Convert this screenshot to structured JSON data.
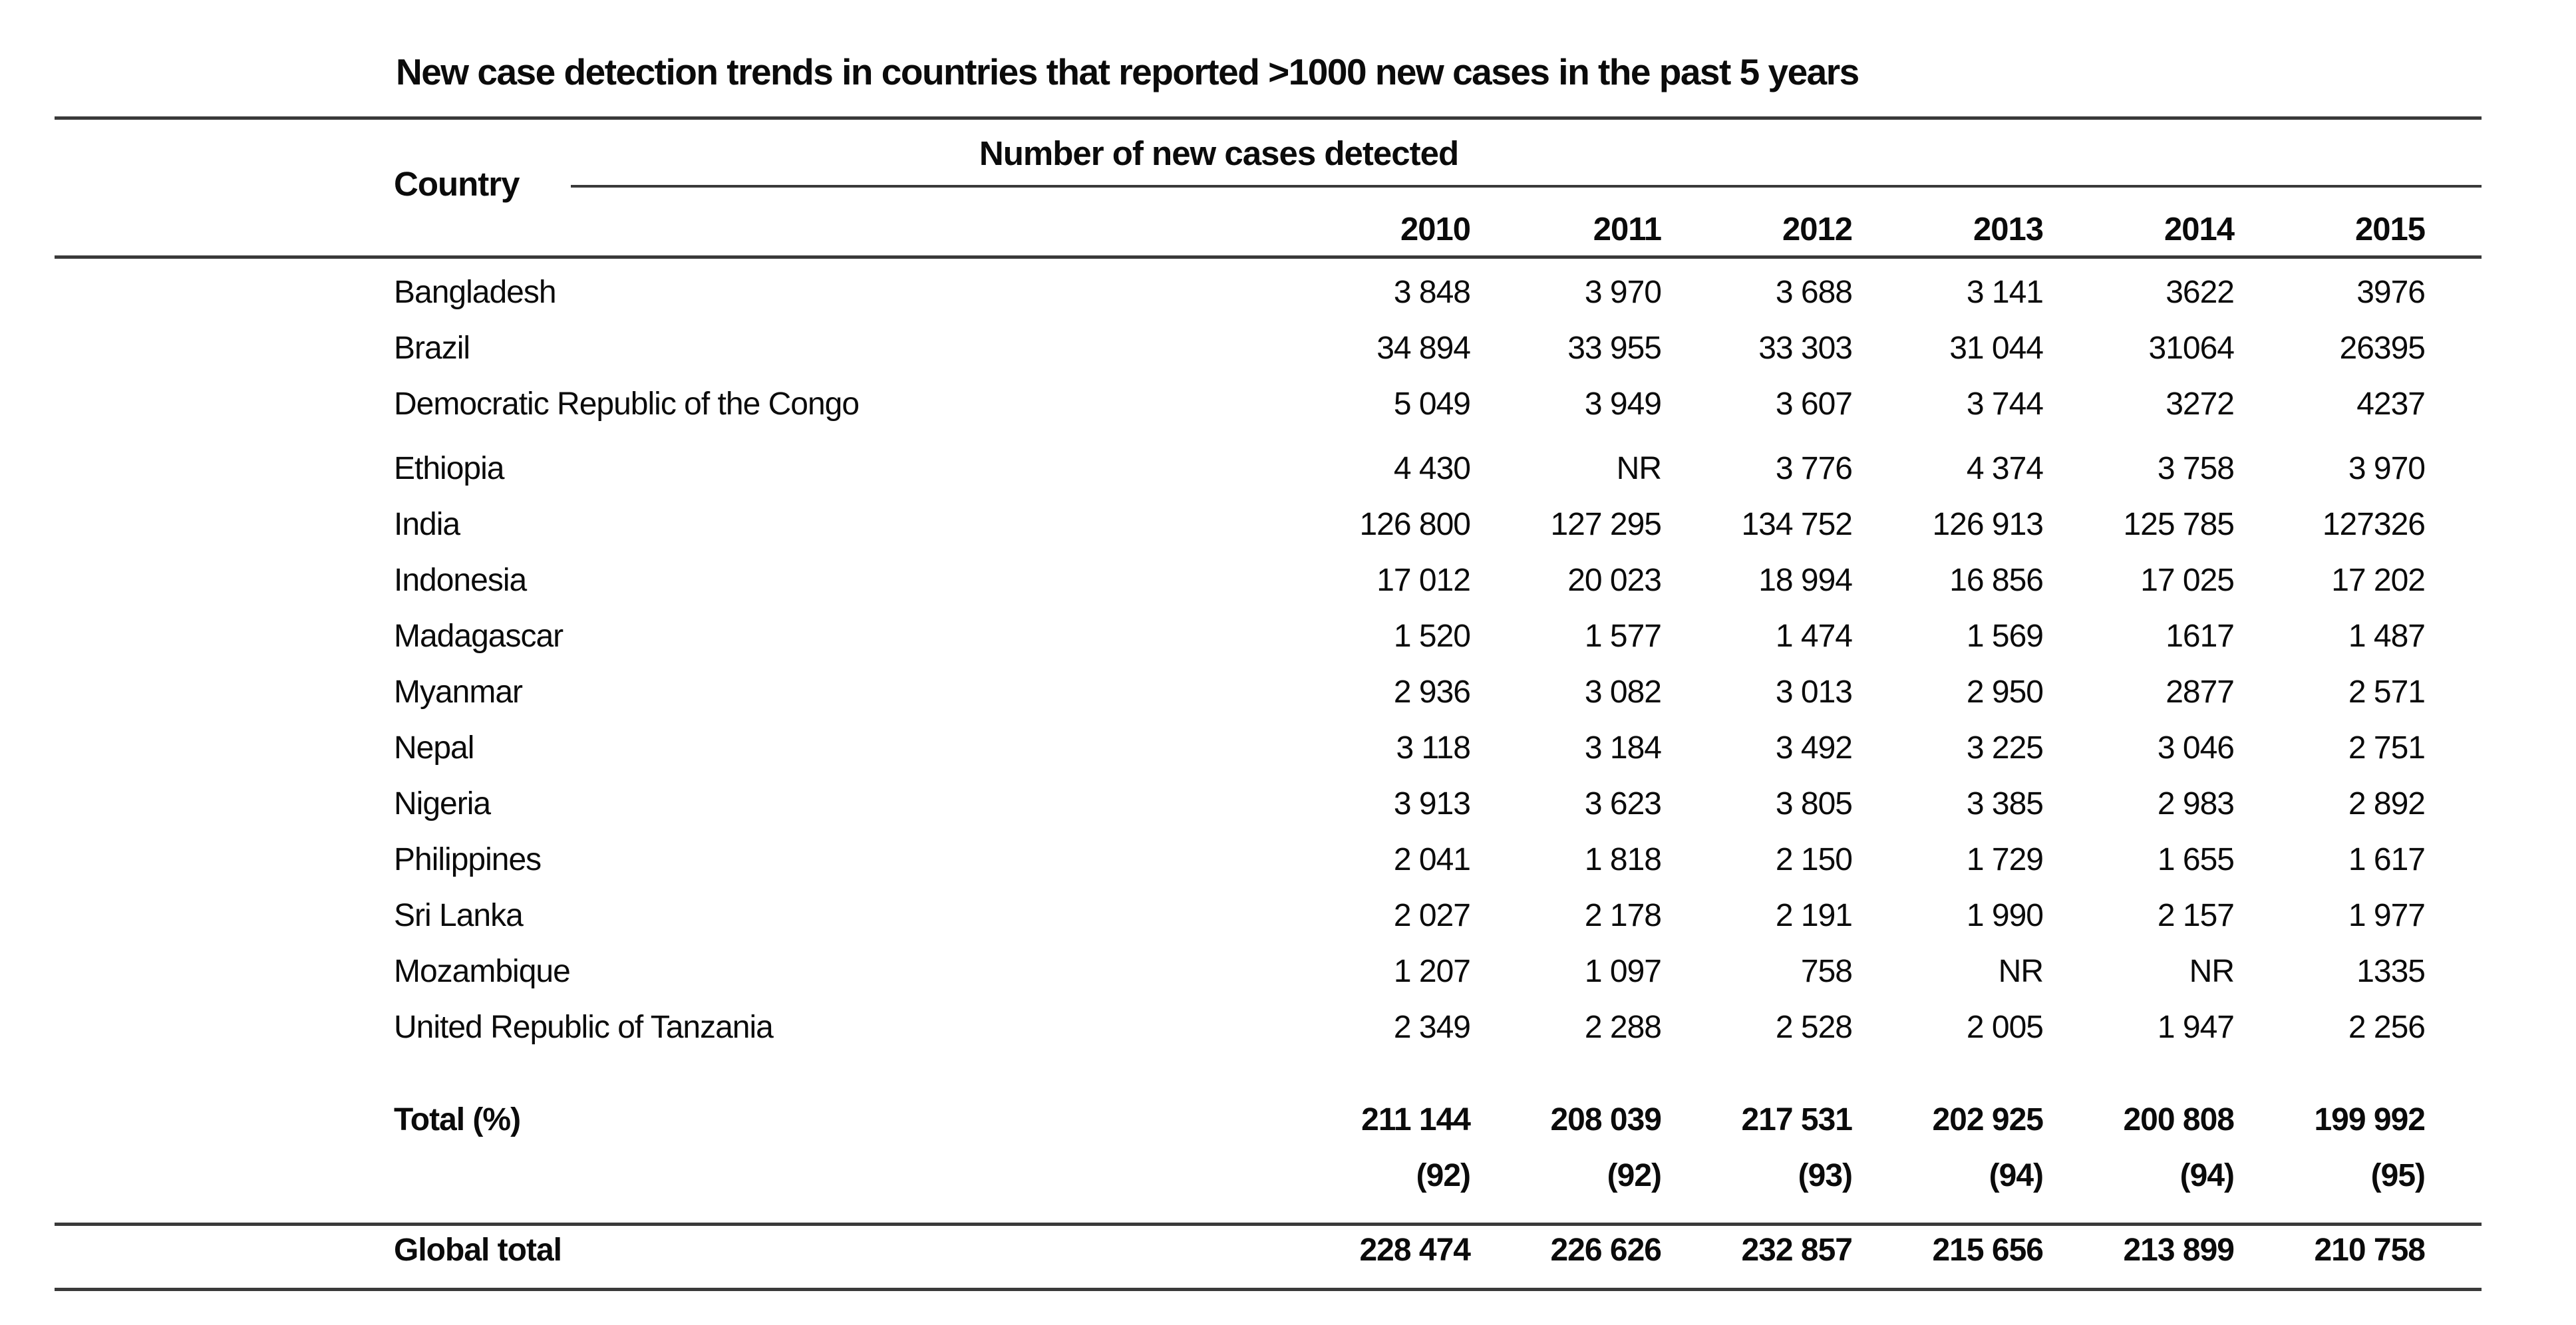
{
  "colors": {
    "background": "#ffffff",
    "text": "#0b0b0b",
    "rule": "#3a3a3a"
  },
  "chart_data": {
    "type": "table",
    "title": "New case detection trends in countries that reported >1000 new cases in the past 5 years",
    "row_header": "Country",
    "column_group_header": "Number of new cases detected",
    "columns": [
      "2010",
      "2011",
      "2012",
      "2013",
      "2014",
      "2015"
    ],
    "rows": [
      {
        "country": "Bangladesh",
        "values": [
          "3 848",
          "3 970",
          "3 688",
          "3 141",
          "3622",
          "3976"
        ]
      },
      {
        "country": "Brazil",
        "values": [
          "34 894",
          "33 955",
          "33 303",
          "31 044",
          "31064",
          "26395"
        ]
      },
      {
        "country": "Democratic Republic of the Congo",
        "values": [
          "5 049",
          "3 949",
          "3 607",
          "3 744",
          "3272",
          "4237"
        ]
      },
      {
        "country": "Ethiopia",
        "values": [
          "4 430",
          "NR",
          "3 776",
          "4 374",
          "3 758",
          "3 970"
        ]
      },
      {
        "country": "India",
        "values": [
          "126 800",
          "127 295",
          "134 752",
          "126 913",
          "125 785",
          "127326"
        ]
      },
      {
        "country": "Indonesia",
        "values": [
          "17 012",
          "20 023",
          "18 994",
          "16 856",
          "17 025",
          "17 202"
        ]
      },
      {
        "country": "Madagascar",
        "values": [
          "1 520",
          "1 577",
          "1 474",
          "1 569",
          "1617",
          "1 487"
        ]
      },
      {
        "country": "Myanmar",
        "values": [
          "2 936",
          "3 082",
          "3 013",
          "2 950",
          "2877",
          "2 571"
        ]
      },
      {
        "country": "Nepal",
        "values": [
          "3 118",
          "3 184",
          "3 492",
          "3 225",
          "3 046",
          "2 751"
        ]
      },
      {
        "country": "Nigeria",
        "values": [
          "3 913",
          "3 623",
          "3 805",
          "3 385",
          "2 983",
          "2 892"
        ]
      },
      {
        "country": "Philippines",
        "values": [
          "2 041",
          "1 818",
          "2 150",
          "1 729",
          "1 655",
          "1 617"
        ]
      },
      {
        "country": "Sri Lanka",
        "values": [
          "2 027",
          "2 178",
          "2 191",
          "1 990",
          "2 157",
          "1 977"
        ]
      },
      {
        "country": "Mozambique",
        "values": [
          "1 207",
          "1 097",
          "758",
          "NR",
          "NR",
          "1335"
        ]
      },
      {
        "country": "United Republic of Tanzania",
        "values": [
          "2 349",
          "2 288",
          "2 528",
          "2 005",
          "1 947",
          "2 256"
        ]
      }
    ],
    "group_breaks": [
      2
    ],
    "na_marker": "NR",
    "footer": {
      "total_label": "Total (%)",
      "total_values": [
        "211 144",
        "208 039",
        "217 531",
        "202 925",
        "200 808",
        "199 992"
      ],
      "total_percent": [
        "(92)",
        "(92)",
        "(93)",
        "(94)",
        "(94)",
        "(95)"
      ],
      "global_label": "Global total",
      "global_values": [
        "228 474",
        "226 626",
        "232 857",
        "215 656",
        "213 899",
        "210 758"
      ]
    },
    "layout": {
      "grid": "off",
      "rules": "horizontal-only",
      "numbers_alignment": "right"
    }
  }
}
